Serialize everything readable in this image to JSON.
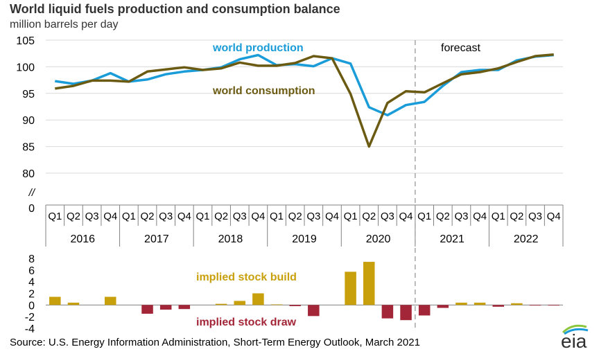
{
  "header": {
    "title": "World liquid fuels production and consumption balance",
    "subtitle": "million barrels per day"
  },
  "footer": {
    "source": "Source: U.S. Energy Information Administration, Short-Term Energy Outlook, March 2021",
    "logo_text": "eia"
  },
  "colors": {
    "production": "#1a9cd8",
    "consumption": "#6b5a12",
    "build": "#c8a00c",
    "draw": "#a32638",
    "grid": "#d9d9d9",
    "forecast_line": "#a6a6a6"
  },
  "chart_data": [
    {
      "type": "line",
      "categories": [
        "Q1",
        "Q2",
        "Q3",
        "Q4",
        "Q1",
        "Q2",
        "Q3",
        "Q4",
        "Q1",
        "Q2",
        "Q3",
        "Q4",
        "Q1",
        "Q2",
        "Q3",
        "Q4",
        "Q1",
        "Q2",
        "Q3",
        "Q4",
        "Q1",
        "Q2",
        "Q3",
        "Q4",
        "Q1",
        "Q2",
        "Q3",
        "Q4"
      ],
      "years": [
        "2016",
        "2017",
        "2018",
        "2019",
        "2020",
        "2021",
        "2022"
      ],
      "series": [
        {
          "name": "world production",
          "values": [
            97.3,
            96.8,
            97.4,
            98.8,
            97.2,
            97.6,
            98.6,
            99.1,
            99.4,
            99.9,
            101.4,
            102.2,
            100.3,
            100.5,
            100.1,
            101.6,
            100.6,
            92.4,
            90.9,
            92.8,
            93.4,
            96.4,
            99.0,
            99.4,
            99.4,
            101.2,
            101.9,
            102.2
          ]
        },
        {
          "name": "world consumption",
          "values": [
            95.9,
            96.4,
            97.4,
            97.4,
            97.2,
            99.1,
            99.5,
            99.9,
            99.4,
            99.7,
            100.8,
            100.2,
            100.2,
            100.7,
            102.0,
            101.6,
            94.9,
            85.0,
            93.2,
            95.4,
            95.2,
            96.9,
            98.6,
            99.0,
            99.7,
            100.9,
            102.0,
            102.3
          ]
        }
      ],
      "ylim": [
        80,
        105
      ],
      "y_ticks": [
        "105",
        "100",
        "95",
        "90",
        "85",
        "80",
        "//",
        "0"
      ],
      "grid": true,
      "annotations": [
        "world production",
        "world consumption",
        "forecast"
      ],
      "forecast_start": "2021 Q1"
    },
    {
      "type": "bar",
      "categories": [
        "Q1",
        "Q2",
        "Q3",
        "Q4",
        "Q1",
        "Q2",
        "Q3",
        "Q4",
        "Q1",
        "Q2",
        "Q3",
        "Q4",
        "Q1",
        "Q2",
        "Q3",
        "Q4",
        "Q1",
        "Q2",
        "Q3",
        "Q4",
        "Q1",
        "Q2",
        "Q3",
        "Q4",
        "Q1",
        "Q2",
        "Q3",
        "Q4"
      ],
      "values": [
        1.4,
        0.4,
        0.0,
        1.4,
        0.0,
        -1.5,
        -0.8,
        -0.7,
        0.0,
        0.2,
        0.7,
        2.0,
        0.1,
        -0.2,
        -1.9,
        0.0,
        5.7,
        7.4,
        -2.3,
        -2.6,
        -1.8,
        -0.5,
        0.4,
        0.4,
        -0.3,
        0.3,
        -0.1,
        -0.1
      ],
      "ylim": [
        -4,
        8
      ],
      "y_ticks": [
        "8",
        "6",
        "4",
        "2",
        "0",
        "-2",
        "-4"
      ],
      "annotations": [
        "implied stock  build",
        "implied stock draw"
      ]
    }
  ]
}
